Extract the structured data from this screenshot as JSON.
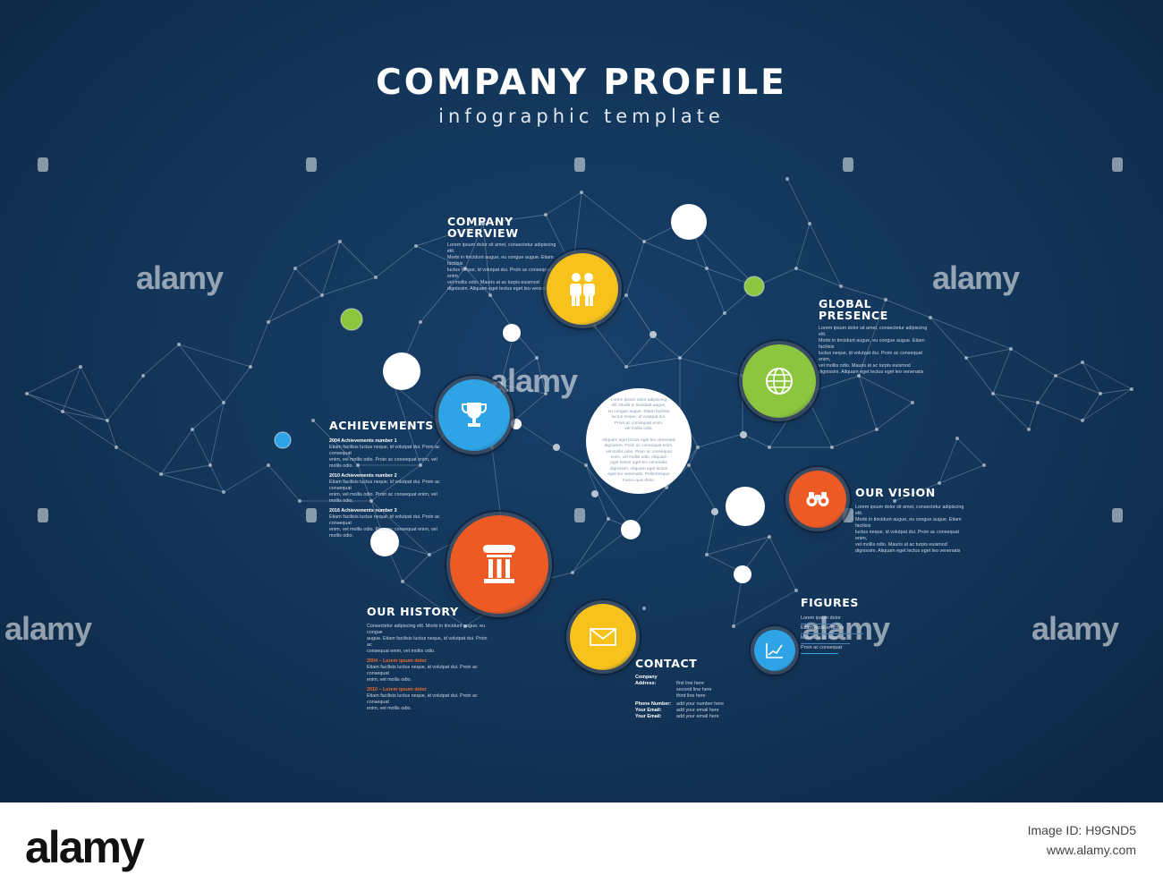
{
  "poster": {
    "title": "COMPANY PROFILE",
    "subtitle": "infographic template",
    "background": "#123457"
  },
  "sections": {
    "company_overview": {
      "heading_1": "COMPANY",
      "heading_2": "OVERVIEW",
      "lines": [
        "Lorem ipsum dolor sit amet, consectetur adipiscing elit.",
        "Morbi in tincidunt augue, eu congue augue. Etiam facilisis",
        "luctus neque, id volutpat dui. Proin ac consequat enim,",
        "vel mollis odio. Mauris at ac turpis euismod",
        "dignissim. Aliquam eget lectus eget leo venenatis"
      ]
    },
    "global_presence": {
      "heading_1": "GLOBAL",
      "heading_2": "PRESENCE",
      "lines": [
        "Lorem ipsum dolor sit amet, consectetur adipiscing elit.",
        "Morbi in tincidunt augue, eu congue augue. Etiam facilisis",
        "luctus neque, id volutpat dui. Proin ac consequat enim,",
        "vel mollis odio. Mauris at ac turpis euismod",
        "dignissim. Aliquam eget lectus eget leo venenatis"
      ]
    },
    "achievements": {
      "heading": "ACHIEVEMENTS",
      "items": [
        {
          "title": "2004  Achievements number 1",
          "l1": "Etiam facilisis luctus neque, id volutpat dui. Proin ac consequat",
          "l2": "enim, vel mollis odio. Proin ac consequat enim, vel mollis odio."
        },
        {
          "title": "2010  Achievements number 2",
          "l1": "Etiam facilisis luctus neque, id volutpat dui. Proin ac consequat",
          "l2": "enim, vel mollis odio. Proin ac consequat enim, vel mollis odio."
        },
        {
          "title": "2016  Achievements number 3",
          "l1": "Etiam facilisis luctus neque, id volutpat dui. Proin ac consequat",
          "l2": "enim, vel mollis odio. Proin ac consequat enim, vel mollis odio."
        }
      ]
    },
    "our_vision": {
      "heading": "OUR VISION",
      "lines": [
        "Lorem ipsum dolor sit amet, consectetur adipiscing elit.",
        "Morbi in tincidunt augue, eu congue augue. Etiam facilisis",
        "luctus neque, id volutpat dui. Proin ac consequat enim,",
        "vel mollis odio. Mauris at ac turpis euismod",
        "dignissim. Aliquam eget lectus eget leo venenatis"
      ]
    },
    "our_history": {
      "heading": "OUR HISTORY",
      "intro_1": "Consectetur adipiscing elit. Morbi in tincidunt augue, eu congue",
      "intro_2": "augue. Etiam facilisis luctus neque, id volutpat dui. Proin ac",
      "intro_3": "consequat enim, vel mollis odio.",
      "items": [
        {
          "year": "2004 – Lorem ipsum dolor",
          "l1": "Etiam facilisis luctus neque, id volutpat dui. Proin ac consequat",
          "l2": "enim, vel mollis odio."
        },
        {
          "year": "2010 – Lorem ipsum dolor",
          "l1": "Etiam facilisis luctus neque, id volutpat dui. Proin ac consequat",
          "l2": "enim, vel mollis odio."
        }
      ]
    },
    "contact": {
      "heading": "CONTACT",
      "rows": [
        {
          "label": "Company Address:",
          "value": "first line here"
        },
        {
          "label": "",
          "value": "second line here"
        },
        {
          "label": "",
          "value": "third line here"
        },
        {
          "label": "Phone Number:",
          "value": "add your number here"
        },
        {
          "label": "Your Email:",
          "value": "add your email here"
        },
        {
          "label": "Your Email:",
          "value": "add your email here"
        }
      ]
    },
    "figures": {
      "heading": "FIGURES",
      "lines": [
        "Lorem ipsum dolor",
        "Etiam facilisis luctus",
        "Mauris at ac turpis",
        "Proin ac consequat"
      ]
    },
    "center": {
      "lines": [
        "Lorem ipsum dolor adipiscing",
        "elit. Morbi in tincidunt augue,",
        "eu congue augue. Etiam facilisis",
        "luctus neque, id volutpat dui.",
        "Proin ac consequat enim,",
        "vel mollis odio.",
        "",
        "Aliquam eget lectus eget leo venenatis",
        "dignissim. Proin ac consequat enim,",
        "vel mollis odio. Proin ac consequat",
        "enim, vel mollis odio. Aliquam",
        "eget lectus eget leo venenatis",
        "dignissim. Aliquam eget lectus",
        "eget leo venenatis. Pellentesque",
        "Fusce quis dolor."
      ]
    }
  },
  "icons": {
    "overview": {
      "name": "people-icon",
      "color": "#f6c21b"
    },
    "achievements": {
      "name": "trophy-icon",
      "color": "#2ea3e6"
    },
    "global": {
      "name": "globe-icon",
      "color": "#8cc63f"
    },
    "vision": {
      "name": "binoculars-icon",
      "color": "#ee5a24"
    },
    "history": {
      "name": "column-icon",
      "color": "#ee5a24"
    },
    "contact": {
      "name": "envelope-icon",
      "color": "#f6c21b"
    },
    "figures": {
      "name": "chart-icon",
      "color": "#2ea3e6"
    }
  },
  "watermark": {
    "text": "alamy"
  },
  "footer": {
    "logo": "alamy",
    "image_id_label": "Image ID: H9GND5",
    "site": "www.alamy.com"
  }
}
